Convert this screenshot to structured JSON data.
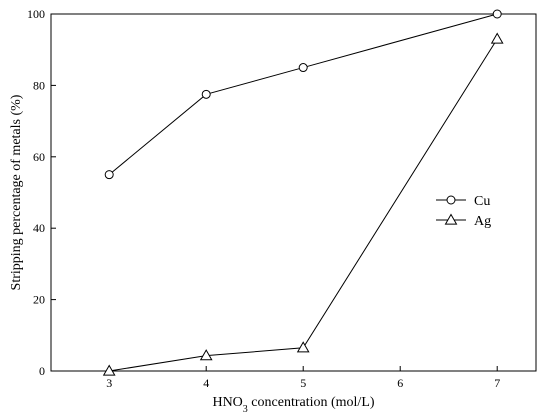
{
  "chart_data": {
    "type": "line",
    "title": "",
    "xlabel": {
      "prefix": "HNO",
      "subscript": "3",
      "suffix": " concentration (mol/L)"
    },
    "ylabel": "Stripping percentage of metals (%)",
    "xlim": [
      2.4,
      7.4
    ],
    "ylim": [
      0,
      100
    ],
    "xticks": [
      3,
      4,
      5,
      6,
      7
    ],
    "yticks": [
      0,
      20,
      40,
      60,
      80,
      100
    ],
    "grid": false,
    "legend_position": "right",
    "series": [
      {
        "name": "Cu",
        "marker": "circle",
        "x": [
          3,
          4,
          5,
          7
        ],
        "y": [
          55,
          77.5,
          85,
          100
        ]
      },
      {
        "name": "Ag",
        "marker": "triangle",
        "x": [
          3,
          4,
          5,
          7
        ],
        "y": [
          0,
          4.3,
          6.5,
          93
        ]
      }
    ]
  }
}
